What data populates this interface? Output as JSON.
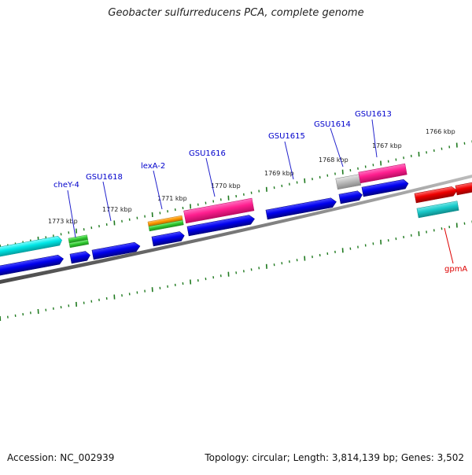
{
  "title": "Geobacter sulfurreducens PCA, complete genome",
  "footer": {
    "accession": "Accession: NC_002939",
    "summary": "Topology: circular; Length: 3,814,139 bp; Genes: 3,502"
  },
  "ticks": [
    {
      "label": "1773 kbp",
      "kbp": 1773
    },
    {
      "label": "1772 kbp",
      "kbp": 1772
    },
    {
      "label": "1771 kbp",
      "kbp": 1771
    },
    {
      "label": "1770 kbp",
      "kbp": 1770
    },
    {
      "label": "1769 kbp",
      "kbp": 1769
    },
    {
      "label": "1768 kbp",
      "kbp": 1768
    },
    {
      "label": "1767 kbp",
      "kbp": 1767
    },
    {
      "label": "1766 kbp",
      "kbp": 1766
    }
  ],
  "gene_labels": [
    {
      "name": "cheY-4",
      "color": "#0000cc"
    },
    {
      "name": "GSU1618",
      "color": "#0000cc"
    },
    {
      "name": "lexA-2",
      "color": "#0000cc"
    },
    {
      "name": "GSU1616",
      "color": "#0000cc"
    },
    {
      "name": "GSU1615",
      "color": "#0000cc"
    },
    {
      "name": "GSU1614",
      "color": "#0000cc"
    },
    {
      "name": "GSU1613",
      "color": "#0000cc"
    },
    {
      "name": "gpmA",
      "color": "#e00000"
    }
  ],
  "colors": {
    "tick": "#1f7a1f",
    "backbone": "#7a7a7a",
    "cds": "#0000ee",
    "cds_alt": "#ff1f8f",
    "cyan": "#00e6e6",
    "green": "#33cc33",
    "orange": "#ff9900",
    "gray": "#bdbdbd",
    "red": "#ee0000",
    "teal": "#19c9c9"
  }
}
